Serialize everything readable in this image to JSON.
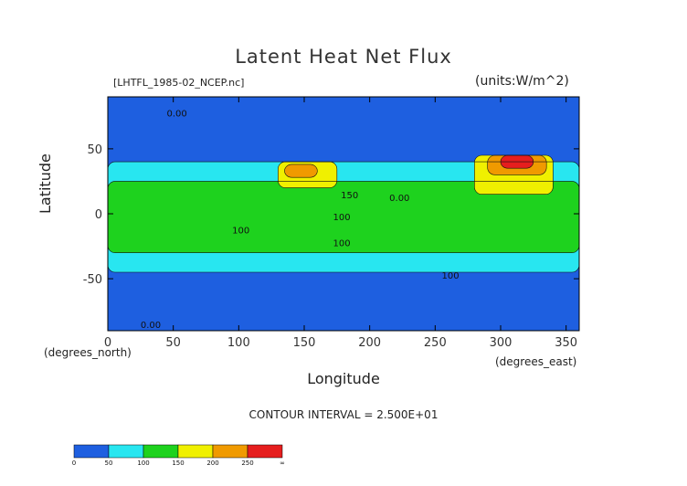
{
  "chart_data": {
    "type": "heatmap",
    "title": "Latent Heat Net Flux",
    "file_label": "[LHTFL_1985-02_NCEP.nc]",
    "units_label": "(units:W/m^2)",
    "xlabel": "Longitude",
    "ylabel": "Latitude",
    "x_unit_label": "(degrees_east)",
    "y_unit_label": "(degrees_north)",
    "xlim": [
      0,
      360
    ],
    "ylim": [
      -90,
      90
    ],
    "x_ticks": [
      "0",
      "50",
      "100",
      "150",
      "200",
      "250",
      "300",
      "350"
    ],
    "y_ticks": [
      "50",
      "0",
      "-50"
    ],
    "contour_interval": "CONTOUR INTERVAL = 2.500E+01",
    "contour_labels": [
      "0.00",
      "150",
      "100",
      "100",
      "100",
      "100",
      "0.00",
      "0.00"
    ],
    "colorbar": {
      "labels": [
        "0",
        "50",
        "100",
        "150",
        "200",
        "250",
        "∞"
      ],
      "colors": [
        "#1e5fe0",
        "#28e6f0",
        "#1ed21e",
        "#f0f000",
        "#f09a00",
        "#e61e1e"
      ]
    },
    "regions": [
      {
        "lon": [
          0,
          360
        ],
        "lat": [
          -90,
          90
        ],
        "band": "0-50"
      },
      {
        "lon": [
          0,
          360
        ],
        "lat": [
          -45,
          40
        ],
        "band": "50-100"
      },
      {
        "lon": [
          0,
          360
        ],
        "lat": [
          -30,
          25
        ],
        "band": "100-150"
      },
      {
        "lon": [
          130,
          175
        ],
        "lat": [
          20,
          40
        ],
        "band": "150-200"
      },
      {
        "lon": [
          135,
          160
        ],
        "lat": [
          28,
          38
        ],
        "band": "200-250"
      },
      {
        "lon": [
          280,
          340
        ],
        "lat": [
          15,
          45
        ],
        "band": "150-200"
      },
      {
        "lon": [
          290,
          335
        ],
        "lat": [
          30,
          45
        ],
        "band": "200-250"
      },
      {
        "lon": [
          300,
          325
        ],
        "lat": [
          35,
          45
        ],
        "band": "250+"
      }
    ]
  }
}
